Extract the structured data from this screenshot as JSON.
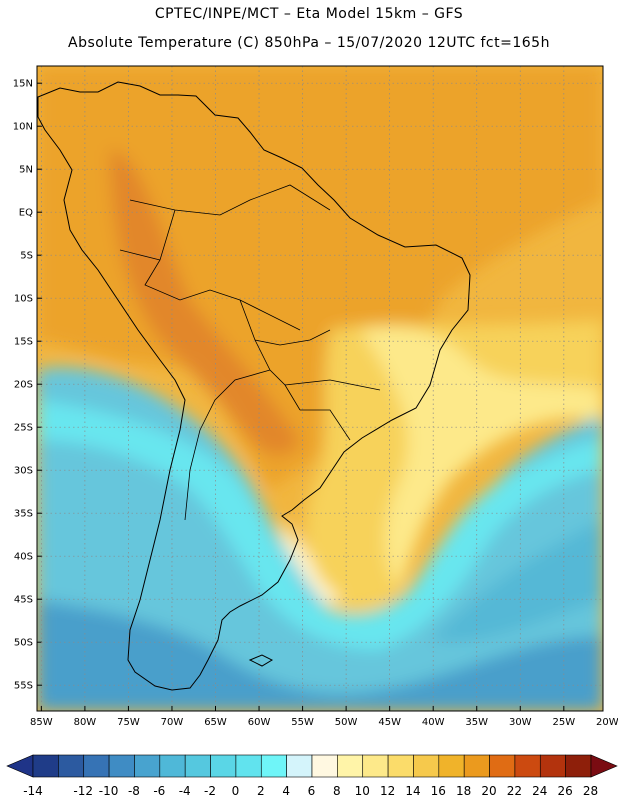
{
  "header": {
    "line1": "CPTEC/INPE/MCT –  Eta Model 15km – GFS",
    "line2": "Absolute Temperature (C) 850hPa – 15/07/2020 12UTC fct=165h"
  },
  "axes": {
    "lat_labels": [
      "15N",
      "10N",
      "5N",
      "EQ",
      "5S",
      "10S",
      "15S",
      "20S",
      "25S",
      "30S",
      "35S",
      "40S",
      "45S",
      "50S",
      "55S"
    ],
    "lat_values": [
      15,
      10,
      5,
      0,
      -5,
      -10,
      -15,
      -20,
      -25,
      -30,
      -35,
      -40,
      -45,
      -50,
      -55
    ],
    "lon_labels": [
      "85W",
      "80W",
      "75W",
      "70W",
      "65W",
      "60W",
      "55W",
      "50W",
      "45W",
      "40W",
      "35W",
      "30W",
      "25W",
      "20W"
    ],
    "lon_values": [
      -85,
      -80,
      -75,
      -70,
      -65,
      -60,
      -55,
      -50,
      -45,
      -40,
      -35,
      -30,
      -25,
      -20
    ],
    "lat_range": [
      -58,
      17
    ],
    "lon_range": [
      -85.5,
      -20.5
    ],
    "grid": "dotted"
  },
  "colorbar": {
    "labels": [
      "-14",
      "-12",
      "-10",
      "-8",
      "-6",
      "-4",
      "-2",
      "0",
      "2",
      "4",
      "6",
      "8",
      "10",
      "12",
      "14",
      "16",
      "18",
      "20",
      "22",
      "24",
      "26",
      "28"
    ],
    "colors": [
      "#1f3c88",
      "#2c5aa0",
      "#3673b5",
      "#3f8cc4",
      "#48a3cf",
      "#4fb8d8",
      "#55c8df",
      "#5ad6e6",
      "#61e3ee",
      "#6ff5f8",
      "#d4f4fb",
      "#fff8e1",
      "#fff4a8",
      "#fde98a",
      "#fbdc6a",
      "#f6c94c",
      "#f0b32a",
      "#eb9a1e",
      "#e06c14",
      "#cc4a10",
      "#b3330d",
      "#8e1f0a"
    ],
    "low_arrow_color": "#1f3488",
    "high_arrow_color": "#7a0c12"
  },
  "map_colors": {
    "ocean_warm": "#f1b63f",
    "tropical_land": "#eca32c",
    "hot_core": "#e2872b",
    "warm_yellow": "#f7d25a",
    "pale_yellow": "#fde98a",
    "cream": "#fff7d5",
    "cold_south": "#66c6dc",
    "cyan": "#68e6ef",
    "deep_cold": "#4a9fcb",
    "coast_line": "#000000"
  }
}
